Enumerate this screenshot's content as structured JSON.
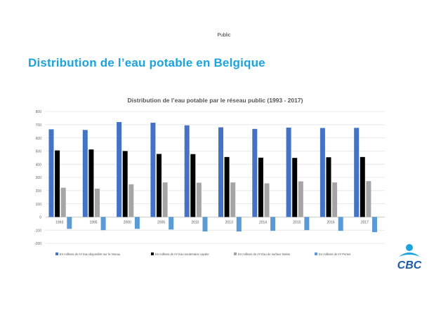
{
  "header": {
    "classification": "Public"
  },
  "slide": {
    "title": "Distribution de l’eau potable en Belgique"
  },
  "logo": {
    "text": "CBC",
    "color": "#1a5ca8"
  },
  "chart_data": {
    "type": "bar",
    "title": "Distribution de l’eau potable par le réseau public (1993 - 2017)",
    "categories": [
      "1993",
      "1995",
      "2000",
      "2005",
      "2010",
      "2013",
      "2014",
      "2015",
      "2016",
      "2017"
    ],
    "ylim": [
      -200,
      800
    ],
    "yticks": [
      -200,
      -100,
      0,
      100,
      200,
      300,
      400,
      500,
      600,
      700,
      800
    ],
    "grid": true,
    "legend_position": "bottom",
    "series": [
      {
        "name": "En millions de m³ Eau disponible sur le réseau",
        "color": "#4472c4",
        "values": [
          665,
          660,
          720,
          715,
          695,
          680,
          668,
          678,
          675,
          676
        ]
      },
      {
        "name": "En millions de m³ Eau souterraine captée",
        "color": "#000000",
        "values": [
          505,
          512,
          500,
          478,
          477,
          455,
          450,
          448,
          453,
          455
        ]
      },
      {
        "name": "En millions de m³ Eau de surface traitée",
        "color": "#a5a5a5",
        "values": [
          222,
          215,
          248,
          262,
          260,
          262,
          255,
          270,
          262,
          272
        ]
      },
      {
        "name": "En millions de m³ Pertes",
        "color": "#5b9bd5",
        "values": [
          -90,
          -100,
          -90,
          -95,
          -110,
          -110,
          -105,
          -100,
          -105,
          -115
        ]
      }
    ]
  }
}
